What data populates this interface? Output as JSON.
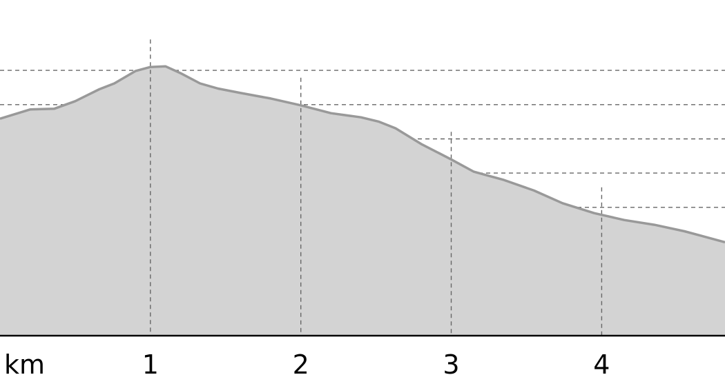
{
  "chart_data": {
    "type": "area",
    "title": "",
    "xlabel": "",
    "ylabel": "",
    "x_unit_label": "km",
    "xlim": [
      0,
      4.82
    ],
    "ylim": [
      0,
      8.8
    ],
    "grid": true,
    "x_ticks": [
      1,
      2,
      3,
      4
    ],
    "x_tick_labels": [
      "1",
      "2",
      "3",
      "4"
    ],
    "y_grid_levels": [
      0.75,
      1.75,
      2.75,
      3.75,
      4.75,
      5.75,
      6.75,
      7.75
    ],
    "series": [
      {
        "points": [
          [
            0.0,
            6.34
          ],
          [
            0.2,
            6.61
          ],
          [
            0.36,
            6.63
          ],
          [
            0.5,
            6.85
          ],
          [
            0.66,
            7.2
          ],
          [
            0.76,
            7.37
          ],
          [
            0.9,
            7.73
          ],
          [
            1.0,
            7.85
          ],
          [
            1.1,
            7.87
          ],
          [
            1.2,
            7.67
          ],
          [
            1.33,
            7.37
          ],
          [
            1.45,
            7.22
          ],
          [
            1.6,
            7.09
          ],
          [
            1.8,
            6.93
          ],
          [
            2.0,
            6.73
          ],
          [
            2.2,
            6.5
          ],
          [
            2.4,
            6.38
          ],
          [
            2.52,
            6.25
          ],
          [
            2.63,
            6.06
          ],
          [
            2.8,
            5.6
          ],
          [
            3.0,
            5.15
          ],
          [
            3.15,
            4.79
          ],
          [
            3.35,
            4.55
          ],
          [
            3.55,
            4.24
          ],
          [
            3.74,
            3.87
          ],
          [
            3.95,
            3.58
          ],
          [
            4.15,
            3.38
          ],
          [
            4.35,
            3.24
          ],
          [
            4.55,
            3.05
          ],
          [
            4.82,
            2.73
          ]
        ]
      }
    ]
  }
}
